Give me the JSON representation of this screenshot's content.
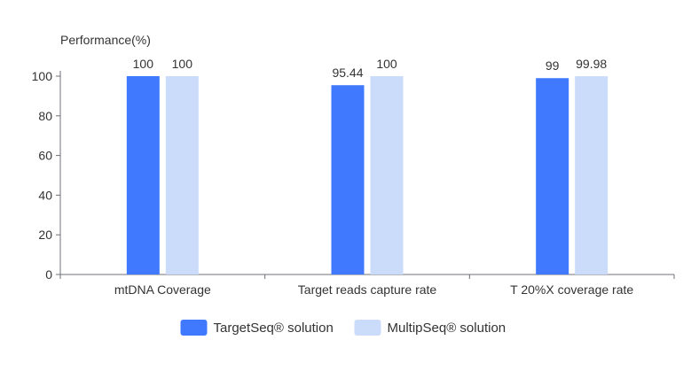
{
  "chart_data": {
    "type": "bar",
    "ylabel": "Performance(%)",
    "xlabel": "",
    "ylim": [
      0,
      100
    ],
    "yticks": [
      0,
      20,
      40,
      60,
      80,
      100
    ],
    "grid": false,
    "legend_position": "bottom-center",
    "categories": [
      "mtDNA Coverage",
      "Target reads capture rate",
      "T 20%X coverage rate"
    ],
    "series": [
      {
        "name": "TargetSeq® solution",
        "color": "#4179fe",
        "values": [
          100,
          95.44,
          99
        ],
        "labels": [
          "100",
          "95.44",
          "99"
        ]
      },
      {
        "name": "MultipSeq® solution",
        "color": "#cbdcfb",
        "values": [
          100,
          100,
          99.98
        ],
        "labels": [
          "100",
          "100",
          "99.98"
        ]
      }
    ]
  }
}
